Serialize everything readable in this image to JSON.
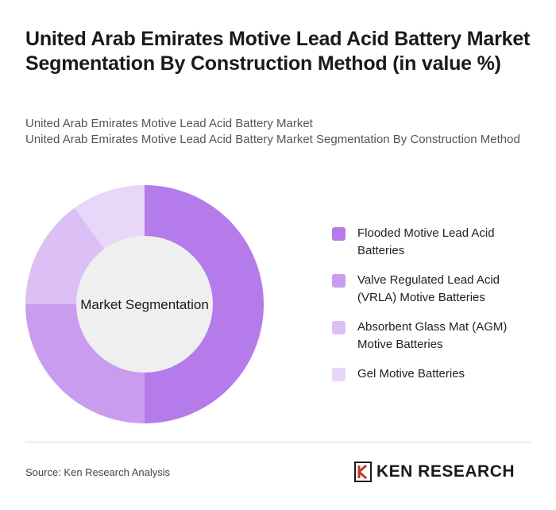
{
  "title": "United Arab Emirates Motive Lead Acid Battery Market Segmentation By Construction Method (in value %)",
  "subtitle_line1": "United Arab Emirates Motive Lead Acid Battery Market",
  "subtitle_line2": "United Arab Emirates Motive Lead Acid Battery Market Segmentation By Construction Method",
  "center_label": "Market Segmentation",
  "source": "Source: Ken Research Analysis",
  "logo_text": "KEN RESEARCH",
  "chart_data": {
    "type": "pie",
    "style": "donut",
    "categories": [
      "Flooded Motive Lead Acid Batteries",
      "Valve Regulated Lead Acid (VRLA) Motive Batteries",
      "Absorbent Glass Mat (AGM) Motive Batteries",
      "Gel Motive Batteries"
    ],
    "values": [
      50,
      25,
      15,
      10
    ],
    "colors": [
      "#b57bea",
      "#c99cf0",
      "#dcc0f5",
      "#e8d7f8"
    ],
    "legend_position": "right"
  }
}
